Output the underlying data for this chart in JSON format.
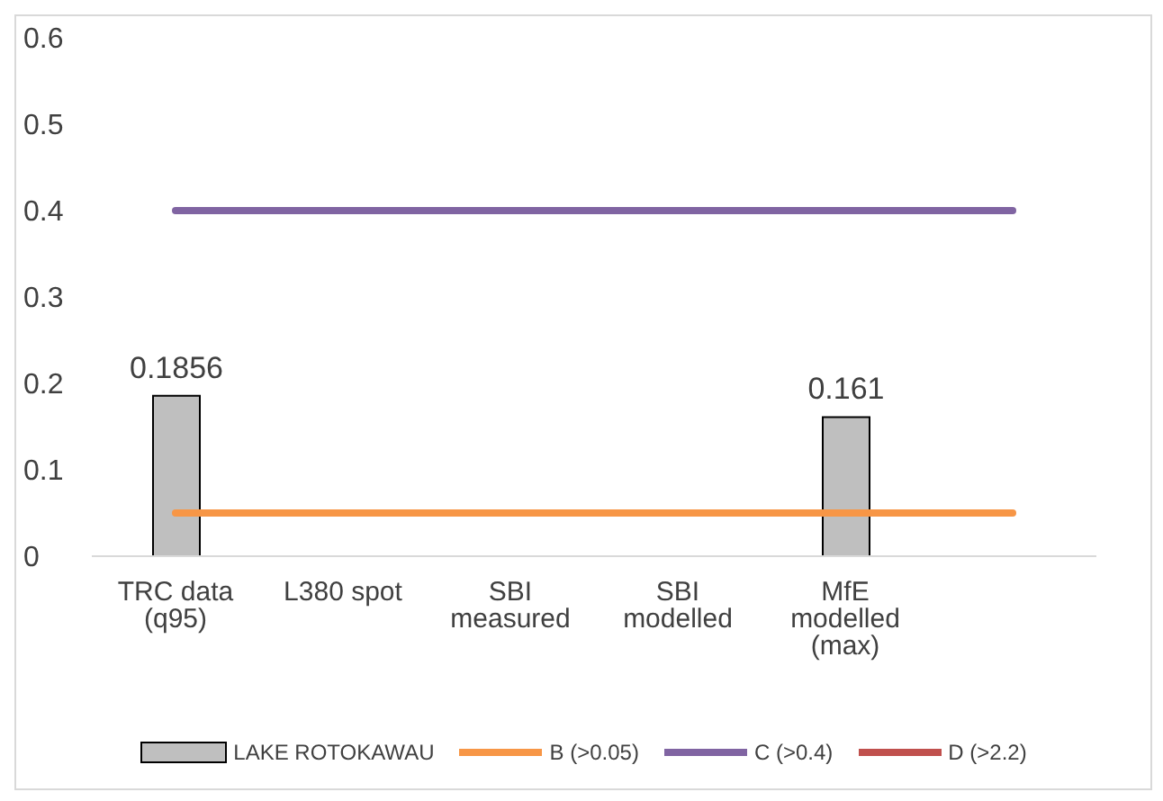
{
  "chart_data": {
    "type": "bar",
    "categories": [
      "TRC data (q95)",
      "L380 spot",
      "SBI measured",
      "SBI modelled",
      "MfE modelled (max)",
      null
    ],
    "series": [
      {
        "name": "LAKE ROTOKAWAU",
        "color": "#bfbfbf",
        "values": [
          0.1856,
          null,
          null,
          null,
          0.161,
          null
        ],
        "value_labels": [
          "0.1856",
          null,
          null,
          null,
          "0.161",
          null
        ]
      },
      {
        "name": "B (>0.05)",
        "type": "line",
        "color": "#f79646",
        "values": [
          0.05,
          0.05,
          0.05,
          0.05,
          0.05,
          0.05
        ]
      },
      {
        "name": "C (>0.4)",
        "type": "line",
        "color": "#8064a2",
        "values": [
          0.4,
          0.4,
          0.4,
          0.4,
          0.4,
          0.4
        ]
      },
      {
        "name": "D (>2.2)",
        "type": "line",
        "color": "#c0504d",
        "values": [
          null,
          null,
          null,
          null,
          null,
          null
        ]
      }
    ],
    "ylim": [
      0,
      0.6
    ],
    "yticks": [
      0,
      0.1,
      0.2,
      0.3,
      0.4,
      0.5,
      0.6
    ],
    "legend": "bottom"
  }
}
